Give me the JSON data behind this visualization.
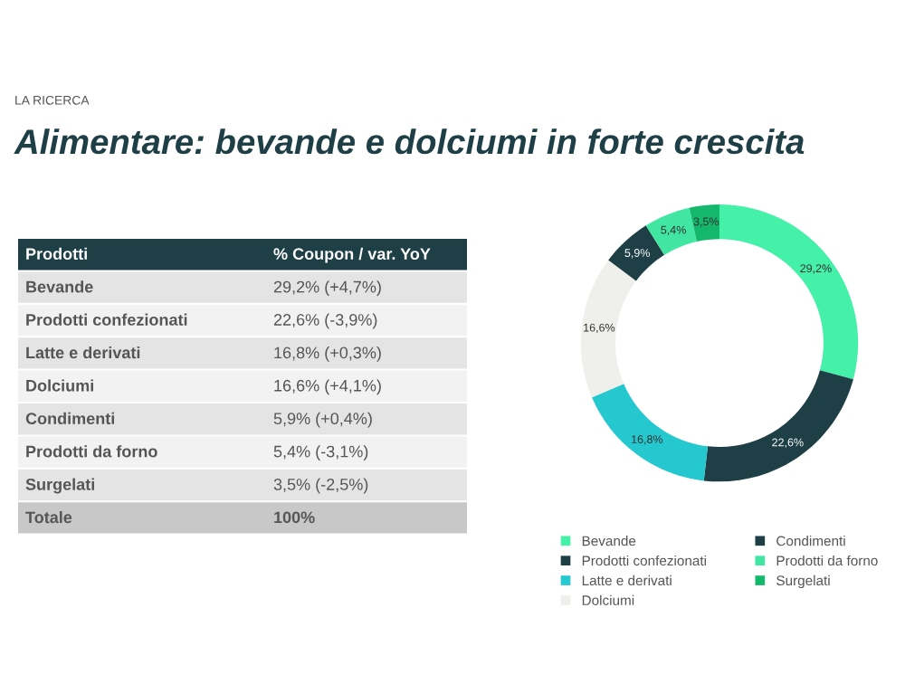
{
  "chart_data": [
    {
      "type": "other",
      "subtitle": "LA RICERCA",
      "title": "Alimentare: bevande e dolciumi in forte crescita",
      "annotations": [
        "Prodotti",
        "% Coupon / var. YoY",
        "Bevande",
        "29,2% (+4,7%)",
        "Prodotti confezionati",
        "22,6% (-3,9%)",
        "Latte e derivati",
        "16,8% (+0,3%)",
        "Dolciumi",
        "16,6% (+4,1%)",
        "Condimenti",
        "5,9% (+0,4%)",
        "Prodotti da forno",
        "5,4% (-3,1%)",
        "Surgelati",
        "3,5% (-2,5%)",
        "Totale",
        "100%"
      ]
    },
    {
      "type": "donut",
      "categories": [
        "Bevande",
        "Prodotti confezionati",
        "Latte e derivati",
        "Dolciumi",
        "Condimenti",
        "Prodotti da forno",
        "Surgelati"
      ],
      "values": [
        29.2,
        22.6,
        16.8,
        16.6,
        5.9,
        5.4,
        3.5
      ],
      "colors": [
        "#45f0a8",
        "#1f3f47",
        "#26c8cf",
        "#efefeb",
        "#1f3f47",
        "#40e6a2",
        "#14b86c"
      ],
      "value_labels": [
        "29,2%",
        "22,6%",
        "16,8%",
        "16,6%",
        "5,9%",
        "5,4%",
        "3,5%"
      ],
      "legend": "bottom"
    }
  ]
}
